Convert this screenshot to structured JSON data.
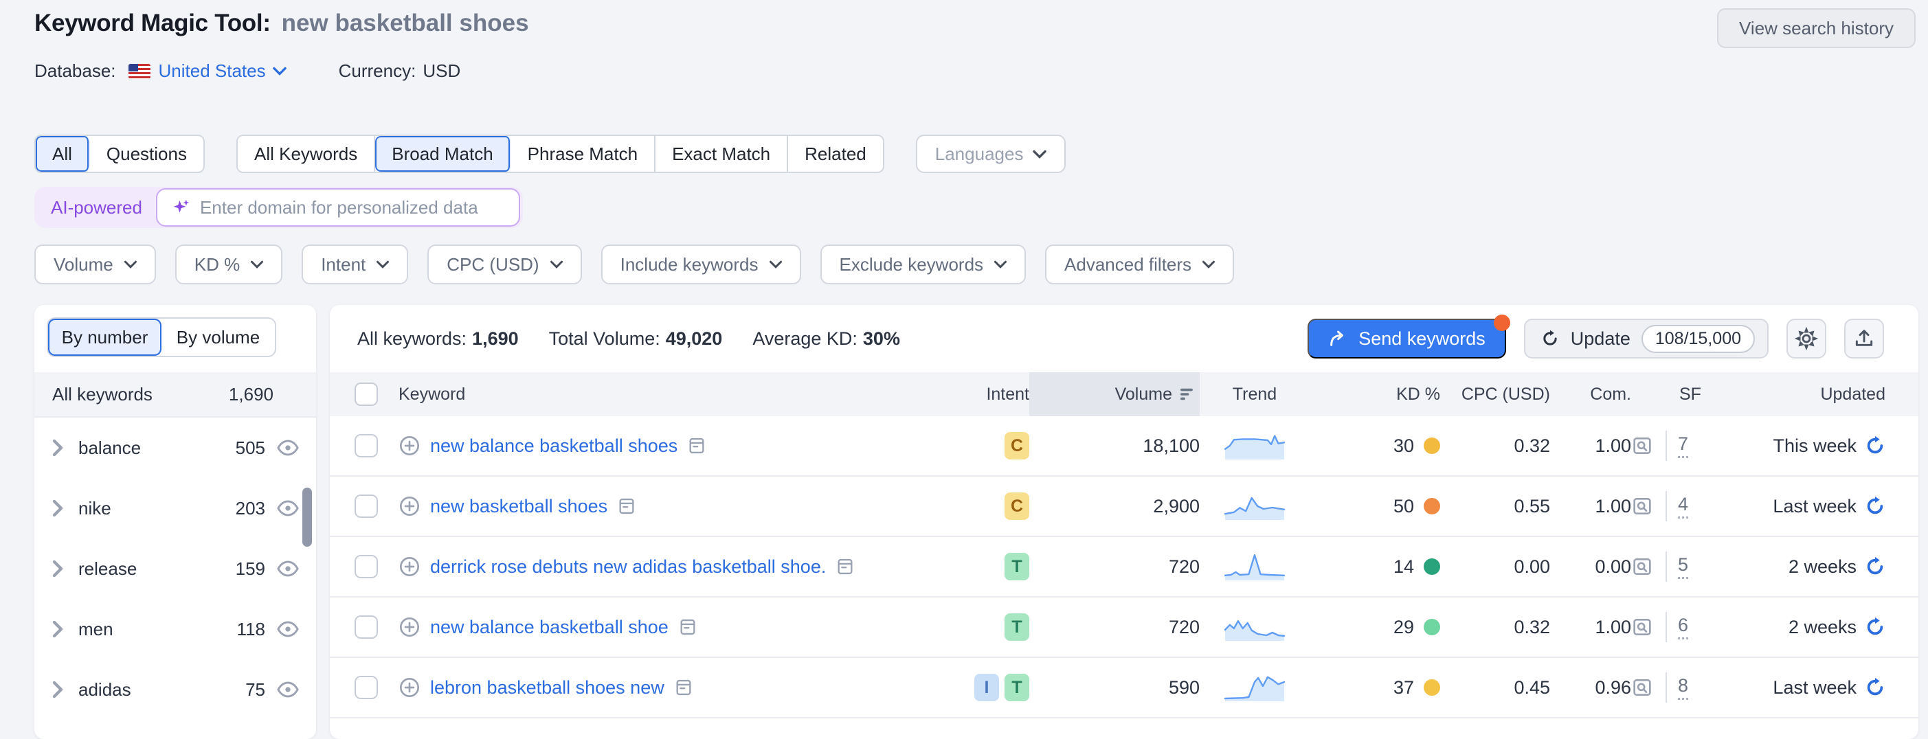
{
  "header": {
    "title": "Keyword Magic Tool:",
    "query": "new basketball shoes",
    "view_history": "View search history",
    "database_label": "Database:",
    "database_value": "United States",
    "currency_label": "Currency:",
    "currency_value": "USD"
  },
  "tabs": {
    "group1": [
      {
        "label": "All"
      },
      {
        "label": "Questions"
      }
    ],
    "group2": [
      {
        "label": "All Keywords"
      },
      {
        "label": "Broad Match"
      },
      {
        "label": "Phrase Match"
      },
      {
        "label": "Exact Match"
      },
      {
        "label": "Related"
      }
    ],
    "languages": "Languages"
  },
  "ai": {
    "badge": "AI-powered",
    "placeholder": "Enter domain for personalized data"
  },
  "filters": {
    "volume": "Volume",
    "kd": "KD %",
    "intent": "Intent",
    "cpc": "CPC (USD)",
    "include": "Include keywords",
    "exclude": "Exclude keywords",
    "advanced": "Advanced filters"
  },
  "sidebar": {
    "by_number": "By number",
    "by_volume": "By volume",
    "all_label": "All keywords",
    "all_count": "1,690",
    "groups": [
      {
        "label": "balance",
        "count": "505"
      },
      {
        "label": "nike",
        "count": "203"
      },
      {
        "label": "release",
        "count": "159"
      },
      {
        "label": "men",
        "count": "118"
      },
      {
        "label": "adidas",
        "count": "75"
      }
    ]
  },
  "toolbar": {
    "all_label": "All keywords:",
    "all_value": "1,690",
    "volume_label": "Total Volume:",
    "volume_value": "49,020",
    "kd_label": "Average KD:",
    "kd_value": "30%",
    "send_label": "Send keywords",
    "update_label": "Update",
    "quota": "108/15,000"
  },
  "table": {
    "headers": {
      "keyword": "Keyword",
      "intent": "Intent",
      "volume": "Volume",
      "trend": "Trend",
      "kd": "KD %",
      "cpc": "CPC (USD)",
      "com": "Com.",
      "sf": "SF",
      "updated": "Updated"
    },
    "rows": [
      {
        "keyword": "new balance basketball shoes",
        "intents": [
          "C"
        ],
        "volume": "18,100",
        "kd": "30",
        "kd_color": "#f2bb40",
        "cpc": "0.32",
        "com": "1.00",
        "sf": "7",
        "updated": "This week",
        "trend": [
          [
            0,
            0.62
          ],
          [
            0.08,
            0.5
          ],
          [
            0.15,
            0.28
          ],
          [
            0.3,
            0.26
          ],
          [
            0.5,
            0.26
          ],
          [
            0.62,
            0.28
          ],
          [
            0.72,
            0.3
          ],
          [
            0.78,
            0.45
          ],
          [
            0.84,
            0.14
          ],
          [
            0.9,
            0.42
          ],
          [
            1,
            0.38
          ]
        ]
      },
      {
        "keyword": "new basketball shoes",
        "intents": [
          "C"
        ],
        "volume": "2,900",
        "kd": "50",
        "kd_color": "#f18b43",
        "cpc": "0.55",
        "com": "1.00",
        "sf": "4",
        "updated": "Last week",
        "trend": [
          [
            0,
            0.78
          ],
          [
            0.15,
            0.72
          ],
          [
            0.25,
            0.56
          ],
          [
            0.35,
            0.68
          ],
          [
            0.45,
            0.2
          ],
          [
            0.55,
            0.5
          ],
          [
            0.65,
            0.6
          ],
          [
            0.8,
            0.55
          ],
          [
            1,
            0.62
          ]
        ]
      },
      {
        "keyword": "derrick rose debuts new adidas basketball shoe.",
        "intents": [
          "T"
        ],
        "volume": "720",
        "kd": "14",
        "kd_color": "#29a37b",
        "cpc": "0.00",
        "com": "0.00",
        "sf": "5",
        "updated": "2 weeks",
        "trend": [
          [
            0,
            0.82
          ],
          [
            0.1,
            0.8
          ],
          [
            0.18,
            0.7
          ],
          [
            0.25,
            0.8
          ],
          [
            0.4,
            0.78
          ],
          [
            0.5,
            0.08
          ],
          [
            0.6,
            0.78
          ],
          [
            0.75,
            0.8
          ],
          [
            1,
            0.82
          ]
        ]
      },
      {
        "keyword": "new balance basketball shoe",
        "intents": [
          "T"
        ],
        "volume": "720",
        "kd": "29",
        "kd_color": "#6fd5a1",
        "cpc": "0.32",
        "com": "1.00",
        "sf": "6",
        "updated": "2 weeks",
        "trend": [
          [
            0,
            0.6
          ],
          [
            0.08,
            0.42
          ],
          [
            0.15,
            0.55
          ],
          [
            0.22,
            0.28
          ],
          [
            0.3,
            0.55
          ],
          [
            0.38,
            0.35
          ],
          [
            0.45,
            0.62
          ],
          [
            0.55,
            0.75
          ],
          [
            0.7,
            0.8
          ],
          [
            0.8,
            0.7
          ],
          [
            0.9,
            0.8
          ],
          [
            1,
            0.82
          ]
        ]
      },
      {
        "keyword": "lebron basketball shoes new",
        "intents": [
          "I",
          "T"
        ],
        "volume": "590",
        "kd": "37",
        "kd_color": "#f2c344",
        "cpc": "0.45",
        "com": "0.96",
        "sf": "8",
        "updated": "Last week",
        "trend": [
          [
            0,
            0.9
          ],
          [
            0.3,
            0.88
          ],
          [
            0.4,
            0.85
          ],
          [
            0.5,
            0.3
          ],
          [
            0.56,
            0.15
          ],
          [
            0.64,
            0.45
          ],
          [
            0.72,
            0.12
          ],
          [
            0.8,
            0.22
          ],
          [
            0.9,
            0.38
          ],
          [
            1,
            0.3
          ]
        ]
      }
    ]
  },
  "intent_styles": {
    "C": {
      "bg": "#f8df8e",
      "fg": "#99610f"
    },
    "I": {
      "bg": "#c9def7",
      "fg": "#4a77bd"
    },
    "T": {
      "bg": "#a6e6c0",
      "fg": "#257f5d"
    }
  },
  "colors": {
    "link": "#2b6cdf",
    "accent": "#3579f0",
    "trend_line": "#5f9df5",
    "trend_fill": "#d9e9fc",
    "notification": "#ef6430"
  }
}
